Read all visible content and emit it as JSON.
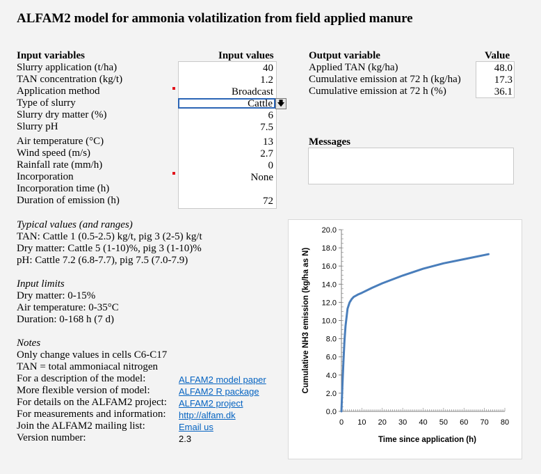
{
  "title": "ALFAM2 model for ammonia volatilization from field applied manure",
  "inputs": {
    "header_label": "Input variables",
    "header_values": "Input values",
    "rows": [
      {
        "label": "Slurry application (t/ha)",
        "value": "40"
      },
      {
        "label": "TAN concentration (kg/t)",
        "value": "1.2"
      },
      {
        "label": "Application method",
        "value": "Broadcast"
      },
      {
        "label": "Type of slurry",
        "value": "Cattle"
      },
      {
        "label": "Slurry dry matter (%)",
        "value": "6"
      },
      {
        "label": "Slurry pH",
        "value": "7.5"
      },
      {
        "label": "Air temperature (°C)",
        "value": "13"
      },
      {
        "label": "Wind speed (m/s)",
        "value": "2.7"
      },
      {
        "label": "Rainfall rate (mm/h)",
        "value": "0"
      },
      {
        "label": "Incorporation",
        "value": "None"
      },
      {
        "label": "Incorporation time (h)",
        "value": ""
      },
      {
        "label": "Duration of emission (h)",
        "value": "72"
      }
    ]
  },
  "outputs": {
    "header_label": "Output variable",
    "header_value": "Value",
    "rows": [
      {
        "label": "Applied TAN (kg/ha)",
        "value": "48.0"
      },
      {
        "label": "Cumulative emission at 72 h (kg/ha)",
        "value": "17.3"
      },
      {
        "label": "Cumulative emission at 72 h (%)",
        "value": "36.1"
      }
    ]
  },
  "messages": {
    "header": "Messages",
    "text": ""
  },
  "typical": {
    "header": "Typical values (and ranges)",
    "lines": [
      "TAN: Cattle 1 (0.5-2.5) kg/t, pig 3 (2-5) kg/t",
      "Dry matter: Cattle 5 (1-10)%, pig 3 (1-10)%",
      "pH: Cattle 7.2 (6.8-7.7), pig 7.5 (7.0-7.9)"
    ]
  },
  "limits": {
    "header": "Input limits",
    "lines": [
      "Dry matter: 0-15%",
      "Air temperature: 0-35°C",
      "Duration: 0-168 h (7 d)"
    ]
  },
  "notes": {
    "header": "Notes",
    "lines": [
      "Only change values in cells C6-C17",
      "TAN = total ammoniacal nitrogen"
    ],
    "links": [
      {
        "label": "For a description of the model:",
        "link": "ALFAM2 model paper"
      },
      {
        "label": "More flexible version of model:",
        "link": "ALFAM2 R package"
      },
      {
        "label": "For details on the ALFAM2 project:",
        "link": "ALFAM2 project"
      },
      {
        "label": "For measurements and information:",
        "link": "http://alfam.dk"
      },
      {
        "label": "Join the ALFAM2 mailing list:",
        "link": "Email us"
      }
    ],
    "version_label": "Version number:",
    "version_value": "2.3"
  },
  "icons": {
    "dropdown": "arrow-down-icon"
  },
  "colors": {
    "line": "#4a7ebb",
    "flag": "#e2141c",
    "selection": "#2a64b5"
  },
  "chart_data": {
    "type": "line",
    "title": "",
    "xlabel": "Time since application (h)",
    "ylabel": "Cumulative NH3 emission (kg/ha as N)",
    "xlim": [
      0,
      80
    ],
    "ylim": [
      0,
      20
    ],
    "x_ticks": [
      0,
      10,
      20,
      30,
      40,
      50,
      60,
      70,
      80
    ],
    "y_ticks": [
      "0.0",
      "2.0",
      "4.0",
      "6.0",
      "8.0",
      "10.0",
      "12.0",
      "14.0",
      "16.0",
      "18.0",
      "20.0"
    ],
    "grid": false,
    "legend": "none",
    "series": [
      {
        "x": [
          0,
          0.5,
          1,
          1.5,
          2,
          3,
          4,
          5,
          6,
          8,
          10,
          15,
          20,
          30,
          40,
          50,
          60,
          72
        ],
        "values": [
          0,
          3.0,
          5.5,
          7.8,
          9.4,
          11.3,
          12.0,
          12.35,
          12.6,
          12.85,
          13.05,
          13.6,
          14.1,
          14.95,
          15.7,
          16.3,
          16.75,
          17.3
        ]
      }
    ]
  }
}
